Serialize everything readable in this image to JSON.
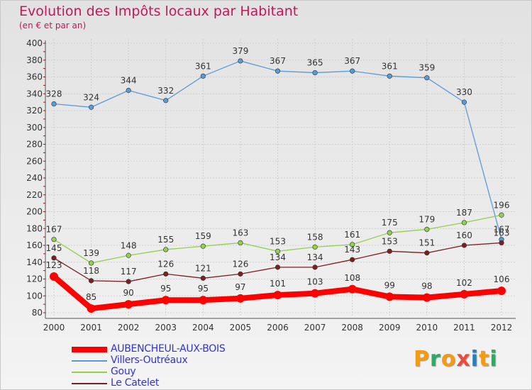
{
  "header": {
    "title": "Evolution des Impôts locaux par Habitant",
    "subtitle": "(en € et par an)"
  },
  "logo": {
    "letters": [
      "P",
      "r",
      "o",
      "x",
      "i",
      "t",
      "i"
    ]
  },
  "colors": {
    "logo_letters": [
      "#f39c12",
      "#27ae60",
      "#f39c12",
      "#e74c3c",
      "#2980b9",
      "#f39c12",
      "#27ae60"
    ],
    "title": "#c2185b",
    "legend_text": "#3333cc"
  },
  "chart_data": {
    "type": "line",
    "title": "Evolution des Impôts locaux par Habitant",
    "subtitle": "(en € et par an)",
    "x": [
      2000,
      2001,
      2002,
      2003,
      2004,
      2005,
      2006,
      2007,
      2008,
      2009,
      2010,
      2011,
      2012
    ],
    "ylim": [
      80,
      400
    ],
    "yticks": [
      80,
      100,
      120,
      140,
      160,
      180,
      200,
      220,
      240,
      260,
      280,
      300,
      320,
      340,
      360,
      380,
      400
    ],
    "grid": true,
    "legend_position": "bottom-left",
    "series": [
      {
        "name": "AUBENCHEUL-AUX-BOIS",
        "color": "#ff0000",
        "values": [
          123,
          85,
          90,
          95,
          95,
          97,
          101,
          103,
          108,
          99,
          98,
          102,
          106
        ]
      },
      {
        "name": "Villers-Outréaux",
        "color": "#5b9bd5",
        "values": [
          328,
          324,
          344,
          332,
          361,
          379,
          367,
          365,
          367,
          361,
          359,
          330,
          167
        ]
      },
      {
        "name": "Gouy",
        "color": "#92d050",
        "values": [
          167,
          139,
          148,
          155,
          159,
          163,
          153,
          158,
          161,
          175,
          179,
          187,
          196
        ]
      },
      {
        "name": "Le Catelet",
        "color": "#7b2020",
        "values": [
          145,
          118,
          117,
          126,
          121,
          126,
          134,
          134,
          143,
          153,
          151,
          160,
          163
        ]
      }
    ]
  }
}
